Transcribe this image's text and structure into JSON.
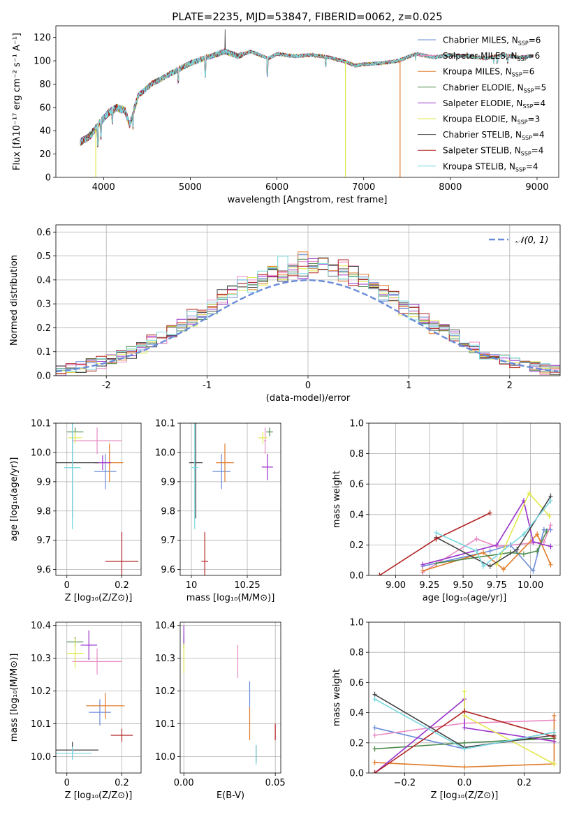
{
  "chart_data": [
    {
      "type": "line",
      "id": "spectrum",
      "title": "PLATE=2235, MJD=53847, FIBERID=0062, z=0.025",
      "xlabel": "wavelength [Angstrom, rest frame]",
      "ylabel": "Flux [fλ10⁻¹⁷ erg cm⁻² s⁻¹ A⁻¹]",
      "xlim": [
        3450,
        9250
      ],
      "ylim": [
        0,
        130
      ],
      "xticks": [
        4000,
        5000,
        6000,
        7000,
        8000,
        9000
      ],
      "yticks": [
        0,
        20,
        40,
        60,
        80,
        100,
        120
      ],
      "grid": false,
      "legend_position": "top-right",
      "envelope": [
        [
          3730,
          30
        ],
        [
          3850,
          36
        ],
        [
          3950,
          46
        ],
        [
          4050,
          55
        ],
        [
          4150,
          60
        ],
        [
          4250,
          57
        ],
        [
          4300,
          45
        ],
        [
          4400,
          70
        ],
        [
          4550,
          80
        ],
        [
          4700,
          86
        ],
        [
          4850,
          92
        ],
        [
          5000,
          98
        ],
        [
          5200,
          103
        ],
        [
          5400,
          108
        ],
        [
          5550,
          104
        ],
        [
          5700,
          108
        ],
        [
          5900,
          102
        ],
        [
          6000,
          106
        ],
        [
          6200,
          104
        ],
        [
          6400,
          105
        ],
        [
          6600,
          103
        ],
        [
          6800,
          99
        ],
        [
          6900,
          96
        ],
        [
          7000,
          97
        ],
        [
          7200,
          98
        ],
        [
          7400,
          100
        ],
        [
          7600,
          106
        ],
        [
          7800,
          103
        ],
        [
          8000,
          105
        ],
        [
          8200,
          104
        ],
        [
          8400,
          102
        ],
        [
          8600,
          105
        ],
        [
          8800,
          103
        ],
        [
          8950,
          104
        ]
      ],
      "features": [
        [
          3934,
          -18
        ],
        [
          3969,
          -14
        ],
        [
          4101,
          -10
        ],
        [
          4340,
          -12
        ],
        [
          4861,
          -10
        ],
        [
          5175,
          -16
        ],
        [
          5890,
          -16
        ],
        [
          6563,
          -8
        ],
        [
          7600,
          -5
        ],
        [
          8500,
          -6
        ],
        [
          8542,
          -6
        ],
        [
          8662,
          -6
        ]
      ],
      "series": [
        {
          "name": "Chabrier MILES, N",
          "sub": "SSP",
          "n": "6",
          "color": "#6a8cd8"
        },
        {
          "name": "Salpeter MILES, N",
          "sub": "SSP",
          "n": "6",
          "color": "#e98bc4"
        },
        {
          "name": "Kroupa MILES, N",
          "sub": "SSP",
          "n": "6",
          "color": "#e07b28"
        },
        {
          "name": "Chabrier ELODIE, N",
          "sub": "SSP",
          "n": "5",
          "color": "#4c8a4c"
        },
        {
          "name": "Salpeter ELODIE, N",
          "sub": "SSP",
          "n": "4",
          "color": "#9932cc"
        },
        {
          "name": "Kroupa ELODIE, N",
          "sub": "SSP",
          "n": "3",
          "color": "#e0e84a"
        },
        {
          "name": "Chabrier STELIB, N",
          "sub": "SSP",
          "n": "4",
          "color": "#444444"
        },
        {
          "name": "Salpeter STELIB, N",
          "sub": "SSP",
          "n": "4",
          "color": "#b22222"
        },
        {
          "name": "Kroupa STELIB, N",
          "sub": "SSP",
          "n": "4",
          "color": "#78d8e0"
        }
      ],
      "dropouts": [
        {
          "x": 3910,
          "color": "#e0e84a"
        },
        {
          "x": 6790,
          "color": "#e0e84a"
        },
        {
          "x": 7420,
          "color": "#e07b28"
        }
      ]
    },
    {
      "type": "step",
      "id": "residuals",
      "xlabel": "(data-model)/error",
      "ylabel": "Normed distribution",
      "xlim": [
        -2.5,
        2.5
      ],
      "ylim": [
        0,
        0.63
      ],
      "xticks": [
        -2,
        -1,
        0,
        1,
        2
      ],
      "yticks": [
        0.0,
        0.1,
        0.2,
        0.3,
        0.4,
        0.5,
        0.6
      ],
      "grid": true,
      "legend_position": "top-right",
      "legend_label": "𝒩(0, 1)",
      "bin_width": 0.1,
      "gaussian_color": "#6a8cd8"
    },
    {
      "type": "scatter",
      "id": "age-vs-Z",
      "xlabel": "Z [log₁₀(Z/Z⊙)]",
      "ylabel": "age  [log₁₀(age/yr)]",
      "xlim": [
        -0.04,
        0.27
      ],
      "ylim": [
        9.58,
        10.1
      ],
      "xticks": [
        0.0,
        0.2
      ],
      "yticks": [
        9.6,
        9.7,
        9.8,
        9.9,
        10.0,
        10.1
      ],
      "grid": true,
      "points": [
        {
          "x": 0.14,
          "y": 9.935,
          "xe": 0.04,
          "ye": 0.06,
          "color": "#6a8cd8"
        },
        {
          "x": 0.11,
          "y": 10.04,
          "xe": 0.09,
          "ye": 0.045,
          "color": "#e98bc4"
        },
        {
          "x": 0.155,
          "y": 9.965,
          "xe": 0.05,
          "ye": 0.065,
          "color": "#e07b28"
        },
        {
          "x": 0.03,
          "y": 10.07,
          "xe": 0.03,
          "ye": 0.015,
          "color": "#4c8a4c"
        },
        {
          "x": 0.13,
          "y": 9.965,
          "xe": 0.03,
          "ye": 0.025,
          "color": "#9932cc"
        },
        {
          "x": 0.03,
          "y": 10.05,
          "xe": 0.025,
          "ye": 0.02,
          "color": "#e0e84a"
        },
        {
          "x": 0.02,
          "y": 9.965,
          "xe": 0.095,
          "ye": 0.19,
          "color": "#444444"
        },
        {
          "x": 0.2,
          "y": 9.628,
          "xe": 0.06,
          "ye": 0.1,
          "color": "#b22222"
        },
        {
          "x": 0.02,
          "y": 9.948,
          "xe": 0.03,
          "ye": 0.21,
          "color": "#78d8e0"
        }
      ]
    },
    {
      "type": "scatter",
      "id": "age-vs-mass",
      "xlabel": "mass [log₁₀(M/M⊙)]",
      "ylabel": "",
      "xlim": [
        9.95,
        10.4
      ],
      "ylim": [
        9.58,
        10.1
      ],
      "xticks": [
        10.0,
        10.25
      ],
      "yticks": [
        9.6,
        9.7,
        9.8,
        9.9,
        10.0,
        10.1
      ],
      "grid": true,
      "points": [
        {
          "x": 10.135,
          "y": 9.935,
          "xe": 0.04,
          "ye": 0.06,
          "color": "#6a8cd8"
        },
        {
          "x": 10.33,
          "y": 10.04,
          "xe": 0.005,
          "ye": 0.045,
          "color": "#e98bc4"
        },
        {
          "x": 10.15,
          "y": 9.965,
          "xe": 0.04,
          "ye": 0.065,
          "color": "#e07b28"
        },
        {
          "x": 10.35,
          "y": 10.07,
          "xe": 0.015,
          "ye": 0.015,
          "color": "#4c8a4c"
        },
        {
          "x": 10.34,
          "y": 9.95,
          "xe": 0.025,
          "ye": 0.045,
          "color": "#9932cc"
        },
        {
          "x": 10.32,
          "y": 10.05,
          "xe": 0.02,
          "ye": 0.02,
          "color": "#e0e84a"
        },
        {
          "x": 10.02,
          "y": 9.965,
          "xe": 0.03,
          "ye": 0.19,
          "color": "#444444"
        },
        {
          "x": 10.06,
          "y": 9.628,
          "xe": 0.015,
          "ye": 0.1,
          "color": "#b22222"
        },
        {
          "x": 10.015,
          "y": 9.948,
          "xe": 0.015,
          "ye": 0.21,
          "color": "#78d8e0"
        }
      ]
    },
    {
      "type": "line",
      "id": "weight-vs-age",
      "xlabel": "age  [log₁₀(age/yr)]",
      "ylabel": "mass weight",
      "xlim": [
        8.8,
        10.22
      ],
      "ylim": [
        0,
        1.0
      ],
      "xticks": [
        9.0,
        9.25,
        9.5,
        9.75,
        10.0
      ],
      "xticklabels": [
        "9.00",
        "9.25",
        "9.50",
        "9.75",
        "10.00"
      ],
      "yticks": [
        0.0,
        0.2,
        0.4,
        0.6,
        0.8,
        1.0
      ],
      "grid": true,
      "series": [
        {
          "color": "#6a8cd8",
          "points": [
            [
              9.2,
              0.06
            ],
            [
              9.7,
              0.16
            ],
            [
              9.85,
              0.2
            ],
            [
              10.02,
              0.03
            ],
            [
              10.1,
              0.3
            ],
            [
              10.15,
              0.3
            ]
          ]
        },
        {
          "color": "#e98bc4",
          "points": [
            [
              9.2,
              0.02
            ],
            [
              9.6,
              0.24
            ],
            [
              9.75,
              0.19
            ],
            [
              10.1,
              0.22
            ],
            [
              10.15,
              0.33
            ]
          ]
        },
        {
          "color": "#e07b28",
          "points": [
            [
              9.2,
              0.03
            ],
            [
              9.65,
              0.15
            ],
            [
              9.8,
              0.04
            ],
            [
              10.05,
              0.27
            ],
            [
              10.15,
              0.07
            ]
          ]
        },
        {
          "color": "#4c8a4c",
          "points": [
            [
              9.3,
              0.08
            ],
            [
              9.85,
              0.15
            ],
            [
              9.95,
              0.14
            ],
            [
              10.05,
              0.16
            ],
            [
              10.12,
              0.29
            ]
          ]
        },
        {
          "color": "#9932cc",
          "points": [
            [
              9.2,
              0.07
            ],
            [
              9.75,
              0.2
            ],
            [
              9.95,
              0.49
            ],
            [
              10.02,
              0.22
            ],
            [
              10.15,
              0.19
            ]
          ]
        },
        {
          "color": "#e0e84a",
          "points": [
            [
              9.75,
              0.07
            ],
            [
              9.99,
              0.54
            ],
            [
              10.14,
              0.39
            ]
          ]
        },
        {
          "color": "#444444",
          "points": [
            [
              9.3,
              0.25
            ],
            [
              9.7,
              0.06
            ],
            [
              9.9,
              0.17
            ],
            [
              10.15,
              0.52
            ]
          ]
        },
        {
          "color": "#b22222",
          "points": [
            [
              8.88,
              0.0
            ],
            [
              9.3,
              0.24
            ],
            [
              9.7,
              0.41
            ]
          ]
        },
        {
          "color": "#78d8e0",
          "points": [
            [
              9.3,
              0.28
            ],
            [
              9.6,
              0.16
            ],
            [
              9.65,
              0.06
            ],
            [
              9.95,
              0.27
            ],
            [
              10.15,
              0.49
            ]
          ]
        }
      ]
    },
    {
      "type": "scatter",
      "id": "mass-vs-Z",
      "xlabel": "Z [log₁₀(Z/Z⊙)]",
      "ylabel": "mass [log₁₀(M/M⊙)]",
      "xlim": [
        -0.04,
        0.27
      ],
      "ylim": [
        9.95,
        10.41
      ],
      "xticks": [
        0.0,
        0.2
      ],
      "yticks": [
        10.0,
        10.1,
        10.2,
        10.3,
        10.4
      ],
      "grid": true,
      "points": [
        {
          "x": 0.12,
          "y": 10.135,
          "xe": 0.04,
          "ye": 0.04,
          "color": "#6a8cd8"
        },
        {
          "x": 0.11,
          "y": 10.29,
          "xe": 0.09,
          "ye": 0.04,
          "color": "#e98bc4"
        },
        {
          "x": 0.14,
          "y": 10.155,
          "xe": 0.07,
          "ye": 0.04,
          "color": "#e07b28"
        },
        {
          "x": 0.03,
          "y": 10.35,
          "xe": 0.03,
          "ye": 0.015,
          "color": "#4c8a4c"
        },
        {
          "x": 0.08,
          "y": 10.34,
          "xe": 0.03,
          "ye": 0.045,
          "color": "#9932cc"
        },
        {
          "x": 0.03,
          "y": 10.315,
          "xe": 0.03,
          "ye": 0.045,
          "color": "#e0e84a"
        },
        {
          "x": 0.02,
          "y": 10.02,
          "xe": 0.095,
          "ye": 0.025,
          "color": "#444444"
        },
        {
          "x": 0.2,
          "y": 10.065,
          "xe": 0.04,
          "ye": 0.02,
          "color": "#b22222"
        },
        {
          "x": 0.02,
          "y": 10.01,
          "xe": 0.07,
          "ye": 0.02,
          "color": "#78d8e0"
        }
      ]
    },
    {
      "type": "scatter",
      "id": "mass-vs-EBV",
      "xlabel": "E(B-V)",
      "ylabel": "",
      "xlim": [
        -0.002,
        0.053
      ],
      "ylim": [
        9.95,
        10.41
      ],
      "xticks": [
        0.0,
        0.05
      ],
      "xticklabels": [
        "0.00",
        "0.05"
      ],
      "yticks": [
        10.0,
        10.1,
        10.2,
        10.3,
        10.4
      ],
      "grid": true,
      "points": [
        {
          "x": 0.036,
          "y": 10.19,
          "xe": 0,
          "ye": 0.04,
          "color": "#6a8cd8"
        },
        {
          "x": 0.0295,
          "y": 10.29,
          "xe": 0,
          "ye": 0.05,
          "color": "#e98bc4"
        },
        {
          "x": 0.036,
          "y": 10.1,
          "xe": 0,
          "ye": 0.05,
          "color": "#e07b28"
        },
        {
          "x": 0.0,
          "y": 10.35,
          "xe": 0,
          "ye": 0.02,
          "color": "#4c8a4c"
        },
        {
          "x": 0.0,
          "y": 10.37,
          "xe": 0,
          "ye": 0.03,
          "color": "#9932cc"
        },
        {
          "x": 0.0,
          "y": 10.3,
          "xe": 0,
          "ye": 0.045,
          "color": "#e0e84a"
        },
        {
          "x": 0.0395,
          "y": 10.01,
          "xe": 0,
          "ye": 0.025,
          "color": "#444444"
        },
        {
          "x": 0.05,
          "y": 10.075,
          "xe": 0,
          "ye": 0.025,
          "color": "#b22222"
        },
        {
          "x": 0.0395,
          "y": 10.005,
          "xe": 0,
          "ye": 0.03,
          "color": "#78d8e0"
        }
      ]
    },
    {
      "type": "line",
      "id": "weight-vs-Z",
      "xlabel": "Z [log₁₀(Z/Z⊙)]",
      "ylabel": "mass weight",
      "xlim": [
        -0.32,
        0.32
      ],
      "ylim": [
        0,
        1.0
      ],
      "xticks": [
        -0.2,
        0.0,
        0.2
      ],
      "xticklabels": [
        "−0.2",
        "0.0",
        "0.2"
      ],
      "yticks": [
        0.0,
        0.2,
        0.4,
        0.6,
        0.8,
        1.0
      ],
      "grid": true,
      "series": [
        {
          "color": "#6a8cd8",
          "points": [
            [
              -0.3,
              0.3
            ],
            [
              0.0,
              0.16
            ],
            [
              0.3,
              0.27
            ]
          ]
        },
        {
          "color": "#e98bc4",
          "points": [
            [
              -0.3,
              0.25
            ],
            [
              0.0,
              0.33
            ],
            [
              0.3,
              0.35
            ]
          ]
        },
        {
          "color": "#e07b28",
          "points": [
            [
              -0.3,
              0.07
            ],
            [
              0.0,
              0.04
            ],
            [
              0.3,
              0.06
            ],
            [
              0.3,
              0.38
            ]
          ]
        },
        {
          "color": "#4c8a4c",
          "points": [
            [
              -0.3,
              0.16
            ],
            [
              0.0,
              0.2
            ],
            [
              0.3,
              0.23
            ]
          ]
        },
        {
          "color": "#9932cc",
          "points": [
            [
              -0.3,
              0.0
            ],
            [
              0.0,
              0.49
            ],
            [
              0.0,
              0.3
            ],
            [
              0.3,
              0.21
            ]
          ]
        },
        {
          "color": "#e0e84a",
          "points": [
            [
              0.0,
              0.54
            ],
            [
              0.0,
              0.38
            ],
            [
              0.3,
              0.06
            ]
          ]
        },
        {
          "color": "#444444",
          "points": [
            [
              -0.3,
              0.52
            ],
            [
              0.0,
              0.17
            ],
            [
              0.3,
              0.25
            ]
          ]
        },
        {
          "color": "#b22222",
          "points": [
            [
              -0.3,
              0.0
            ],
            [
              0.0,
              0.41
            ],
            [
              0.3,
              0.24
            ]
          ]
        },
        {
          "color": "#78d8e0",
          "points": [
            [
              -0.3,
              0.49
            ],
            [
              0.0,
              0.16
            ],
            [
              0.3,
              0.27
            ]
          ]
        }
      ]
    }
  ]
}
